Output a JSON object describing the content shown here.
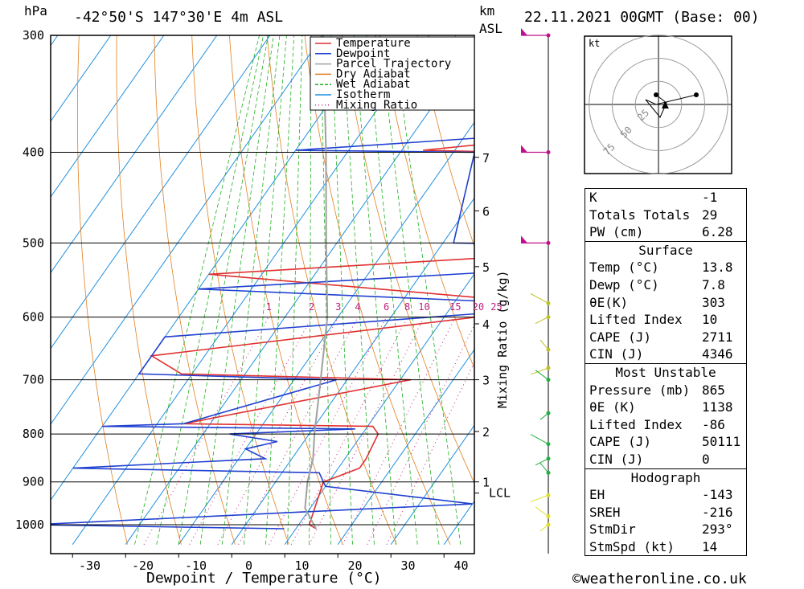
{
  "header": {
    "hpa_label": "hPa",
    "location": "-42°50'S 147°30'E 4m ASL",
    "km_label": "km",
    "asl_label": "ASL",
    "datetime": "22.11.2021 00GMT (Base: 00)"
  },
  "footer": {
    "xlabel": "Dewpoint / Temperature (°C)",
    "credit": "©weatheronline.co.uk"
  },
  "chart_data": {
    "type": "line",
    "subtype": "skew-T log-P diagram",
    "title": "-42°50'S 147°30'E 4m ASL",
    "xlabel": "Dewpoint / Temperature (°C)",
    "ylabel": "hPa",
    "secondary_ylabel": "Mixing Ratio (g/kg)",
    "pressure_ticks": [
      300,
      400,
      500,
      600,
      700,
      800,
      900,
      1000
    ],
    "temperature_ticks": [
      -30,
      -20,
      -10,
      0,
      10,
      20,
      30,
      40
    ],
    "km_ticks": [
      "1",
      "2",
      "3",
      "4",
      "5",
      "6",
      "7"
    ],
    "lcl_label": "LCL",
    "mixing_ratio_ticks": [
      "1",
      "2",
      "3",
      "4",
      "6",
      "8",
      "10",
      "15",
      "20",
      "25"
    ],
    "xlim": [
      -38,
      43
    ],
    "ylim": [
      1050,
      300
    ],
    "legend_position": "top-right",
    "legend": [
      {
        "name": "Temperature",
        "color": "#e03030"
      },
      {
        "name": "Dewpoint",
        "color": "#2040d0"
      },
      {
        "name": "Parcel Trajectory",
        "color": "#a0a0a0"
      },
      {
        "name": "Dry Adiabat",
        "color": "#e08020"
      },
      {
        "name": "Wet Adiabat",
        "color": "#20b020"
      },
      {
        "name": "Isotherm",
        "color": "#2090e0"
      },
      {
        "name": "Mixing Ratio",
        "color": "#c02080"
      }
    ],
    "series": [
      {
        "name": "Temperature",
        "color": "#e03030",
        "points": [
          {
            "p": 1010,
            "t": 13.8
          },
          {
            "p": 1000,
            "t": 12
          },
          {
            "p": 900,
            "t": 9
          },
          {
            "p": 870,
            "t": 14
          },
          {
            "p": 850,
            "t": 14
          },
          {
            "p": 800,
            "t": 13
          },
          {
            "p": 785,
            "t": 11
          },
          {
            "p": 780,
            "t": -25
          },
          {
            "p": 700,
            "t": 12
          },
          {
            "p": 690,
            "t": -32
          },
          {
            "p": 660,
            "t": -40
          },
          {
            "p": 590,
            "t": 26
          },
          {
            "p": 580,
            "t": 27
          },
          {
            "p": 540,
            "t": -40
          },
          {
            "p": 505,
            "t": 43
          },
          {
            "p": 500,
            "t": 7
          },
          {
            "p": 400,
            "t": 2
          },
          {
            "p": 398,
            "t": -16
          },
          {
            "p": 375,
            "t": 26
          },
          {
            "p": 370,
            "t": 23
          },
          {
            "p": 340,
            "t": 20
          },
          {
            "p": 300,
            "t": -8
          }
        ]
      },
      {
        "name": "Dewpoint",
        "color": "#2040d0",
        "points": [
          {
            "p": 1010,
            "t": 7.8
          },
          {
            "p": 1000,
            "t": -40
          },
          {
            "p": 950,
            "t": 40
          },
          {
            "p": 910,
            "t": 10
          },
          {
            "p": 900,
            "t": 9
          },
          {
            "p": 880,
            "t": 7
          },
          {
            "p": 870,
            "t": -40
          },
          {
            "p": 850,
            "t": -5
          },
          {
            "p": 830,
            "t": -10
          },
          {
            "p": 815,
            "t": -5
          },
          {
            "p": 800,
            "t": -15
          },
          {
            "p": 790,
            "t": 8
          },
          {
            "p": 785,
            "t": -40
          },
          {
            "p": 780,
            "t": -25
          },
          {
            "p": 700,
            "t": -2
          },
          {
            "p": 690,
            "t": -40
          },
          {
            "p": 630,
            "t": -40
          },
          {
            "p": 590,
            "t": 24
          },
          {
            "p": 580,
            "t": 25
          },
          {
            "p": 560,
            "t": -40
          },
          {
            "p": 525,
            "t": 42
          },
          {
            "p": 505,
            "t": 43
          },
          {
            "p": 500,
            "t": 2
          },
          {
            "p": 400,
            "t": -6
          },
          {
            "p": 398,
            "t": -40
          },
          {
            "p": 375,
            "t": 25
          },
          {
            "p": 370,
            "t": 20
          },
          {
            "p": 340,
            "t": 12
          },
          {
            "p": 300,
            "t": -14
          }
        ]
      },
      {
        "name": "Parcel Trajectory",
        "color": "#a0a0a0",
        "points": [
          {
            "p": 1010,
            "t": 13.8
          },
          {
            "p": 960,
            "t": 9
          },
          {
            "p": 900,
            "t": 6
          },
          {
            "p": 850,
            "t": 4
          },
          {
            "p": 800,
            "t": 1
          },
          {
            "p": 700,
            "t": -5
          },
          {
            "p": 600,
            "t": -12
          },
          {
            "p": 500,
            "t": -22
          },
          {
            "p": 400,
            "t": -34
          },
          {
            "p": 300,
            "t": -50
          }
        ]
      }
    ]
  },
  "hodograph": {
    "unit_label": "kt",
    "ring_labels": [
      "25",
      "50",
      "75"
    ]
  },
  "indices": {
    "general": [
      {
        "key": "K",
        "value": "-1"
      },
      {
        "key": "Totals Totals",
        "value": "29"
      },
      {
        "key": "PW (cm)",
        "value": "6.28"
      }
    ],
    "surface": {
      "title": "Surface",
      "rows": [
        {
          "key": "Temp (°C)",
          "value": "13.8"
        },
        {
          "key": "Dewp (°C)",
          "value": "7.8"
        },
        {
          "key": "θE(K)",
          "value": "303"
        },
        {
          "key": "Lifted Index",
          "value": "10"
        },
        {
          "key": "CAPE (J)",
          "value": "2711"
        },
        {
          "key": "CIN (J)",
          "value": "4346"
        }
      ]
    },
    "most_unstable": {
      "title": "Most Unstable",
      "rows": [
        {
          "key": "Pressure (mb)",
          "value": "865"
        },
        {
          "key": "θE (K)",
          "value": "1138"
        },
        {
          "key": "Lifted Index",
          "value": "-86"
        },
        {
          "key": "CAPE (J)",
          "value": "50111"
        },
        {
          "key": "CIN (J)",
          "value": "0"
        }
      ]
    },
    "hodograph_table": {
      "title": "Hodograph",
      "rows": [
        {
          "key": "EH",
          "value": "-143"
        },
        {
          "key": "SREH",
          "value": "-216"
        },
        {
          "key": "StmDir",
          "value": "293°"
        },
        {
          "key": "StmSpd (kt)",
          "value": "14"
        }
      ]
    }
  }
}
